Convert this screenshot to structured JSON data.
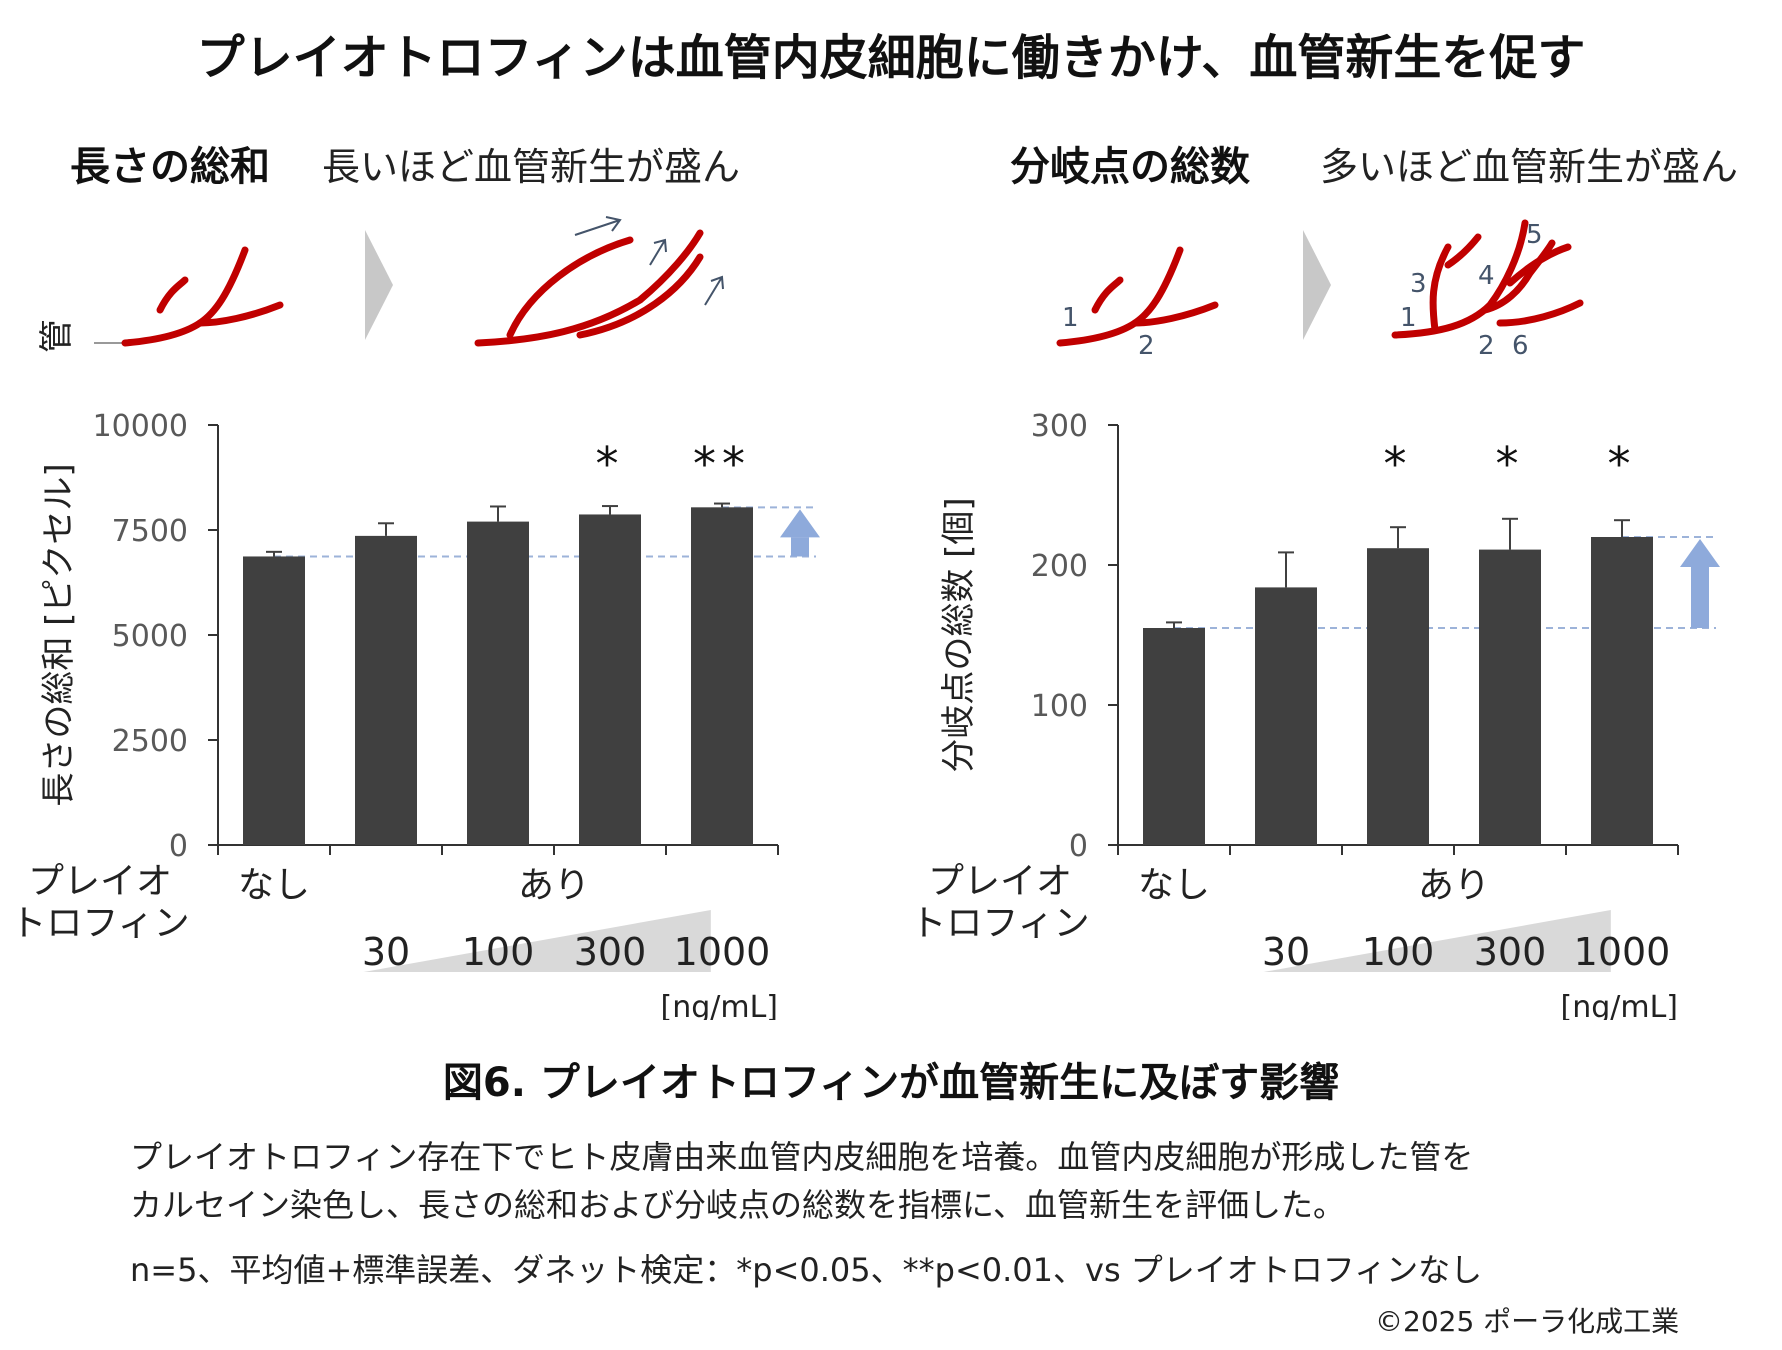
{
  "title": "プレイオトロフィンは血管内皮細胞に働きかけ、血管新生を促す",
  "panels": [
    {
      "heading": "長さの総和",
      "subheading": "長いほど血管新生が盛ん",
      "tube_label": "管",
      "branch_numbers": []
    },
    {
      "heading": "分岐点の総数",
      "subheading": "多いほど血管新生が盛ん",
      "tube_label": "",
      "branch_numbers": [
        "1",
        "2",
        "1",
        "2",
        "3",
        "4",
        "5",
        "6"
      ]
    }
  ],
  "chart_data": [
    {
      "type": "bar",
      "ylabel": "長さの総和 [ピクセル]",
      "ylim": [
        0,
        10000
      ],
      "yticks": [
        "0",
        "2500",
        "5000",
        "7500",
        "10000"
      ],
      "categories": [
        "なし",
        "30",
        "100",
        "300",
        "1000"
      ],
      "values": [
        6870,
        7360,
        7700,
        7870,
        8040
      ],
      "errors": [
        110,
        300,
        360,
        200,
        90
      ],
      "significance": [
        "",
        "",
        "",
        "*",
        "**"
      ],
      "baseline_value": 6870,
      "top_value": 8040,
      "x_row_label": "プレイオ\nトロフィン",
      "group_labels": [
        "なし",
        "あり"
      ],
      "dose_labels": [
        "30",
        "100",
        "300",
        "1000"
      ],
      "unit": "[ng/mL]"
    },
    {
      "type": "bar",
      "ylabel": "分岐点の総数 [個]",
      "ylim": [
        0,
        300
      ],
      "yticks": [
        "0",
        "100",
        "200",
        "300"
      ],
      "categories": [
        "なし",
        "30",
        "100",
        "300",
        "1000"
      ],
      "values": [
        155,
        184,
        212,
        211,
        220
      ],
      "errors": [
        4,
        25,
        15,
        22,
        12
      ],
      "significance": [
        "",
        "",
        "*",
        "*",
        "*"
      ],
      "baseline_value": 155,
      "top_value": 220,
      "x_row_label": "プレイオ\nトロフィン",
      "group_labels": [
        "なし",
        "あり"
      ],
      "dose_labels": [
        "30",
        "100",
        "300",
        "1000"
      ],
      "unit": "[ng/mL]"
    }
  ],
  "figure_caption": "図6. プレイオトロフィンが血管新生に及ぼす影響",
  "description_lines": [
    "プレイオトロフィン存在下でヒト皮膚由来血管内皮細胞を培養。血管内皮細胞が形成した管を",
    "カルセイン染色し、長さの総和および分岐点の総数を指標に、血管新生を評価した。"
  ],
  "stats_note": "n=5、平均値+標準誤差、ダネット検定：*p<0.05、**p<0.01、vs プレイオトロフィンなし",
  "copyright": "©2025 ポーラ化成工業",
  "colors": {
    "bar": "#404040",
    "vessel": "#c00000",
    "arrow": "#8eaadb",
    "dash": "#9db3d9",
    "number": "#44546a",
    "wedge": "#d9d9d9"
  }
}
